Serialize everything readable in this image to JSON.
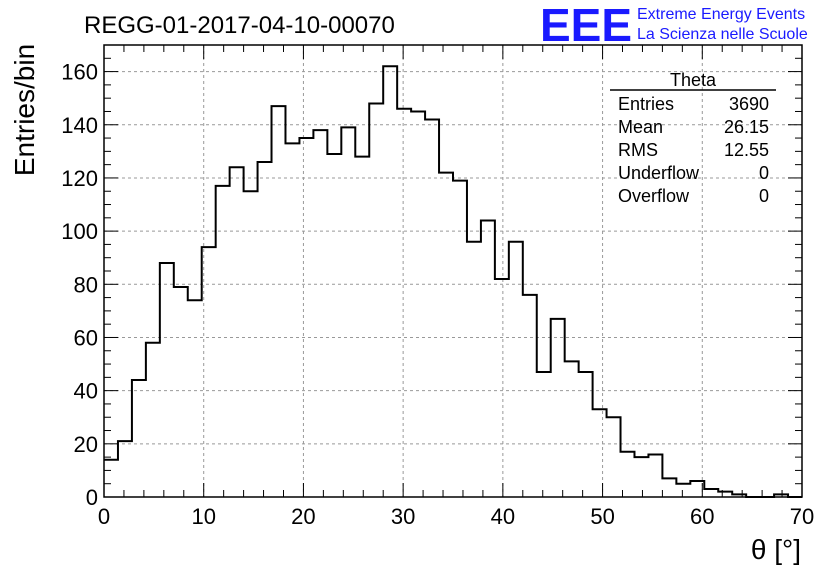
{
  "header": {
    "run_title": "REGG-01-2017-04-10-00070",
    "logo_letters": "EEE",
    "logo_line1": "Extreme Energy Events",
    "logo_line2": "La Scienza nelle Scuole"
  },
  "stats": {
    "title": "Theta",
    "rows": [
      {
        "name": "Entries",
        "value": "3690"
      },
      {
        "name": "Mean",
        "value": "26.15"
      },
      {
        "name": "RMS",
        "value": "12.55"
      },
      {
        "name": "Underflow",
        "value": "0"
      },
      {
        "name": "Overflow",
        "value": "0"
      }
    ]
  },
  "chart_data": {
    "type": "histogram",
    "xlabel": "θ [°]",
    "ylabel": "Entries/bin",
    "xlim": [
      0,
      70
    ],
    "ylim": [
      0,
      170
    ],
    "grid": true,
    "bin_width": 1.4,
    "x_ticks": [
      0,
      10,
      20,
      30,
      40,
      50,
      60,
      70
    ],
    "y_ticks": [
      0,
      20,
      40,
      60,
      80,
      100,
      120,
      140,
      160
    ],
    "values": [
      14,
      21,
      44,
      58,
      88,
      79,
      74,
      94,
      117,
      124,
      115,
      126,
      147,
      133,
      135,
      138,
      129,
      139,
      128,
      148,
      162,
      146,
      145,
      142,
      122,
      119,
      96,
      104,
      82,
      96,
      76,
      47,
      67,
      51,
      47,
      33,
      30,
      17,
      15,
      16,
      7,
      5,
      6,
      3,
      2,
      1,
      0,
      0,
      1,
      0
    ]
  }
}
